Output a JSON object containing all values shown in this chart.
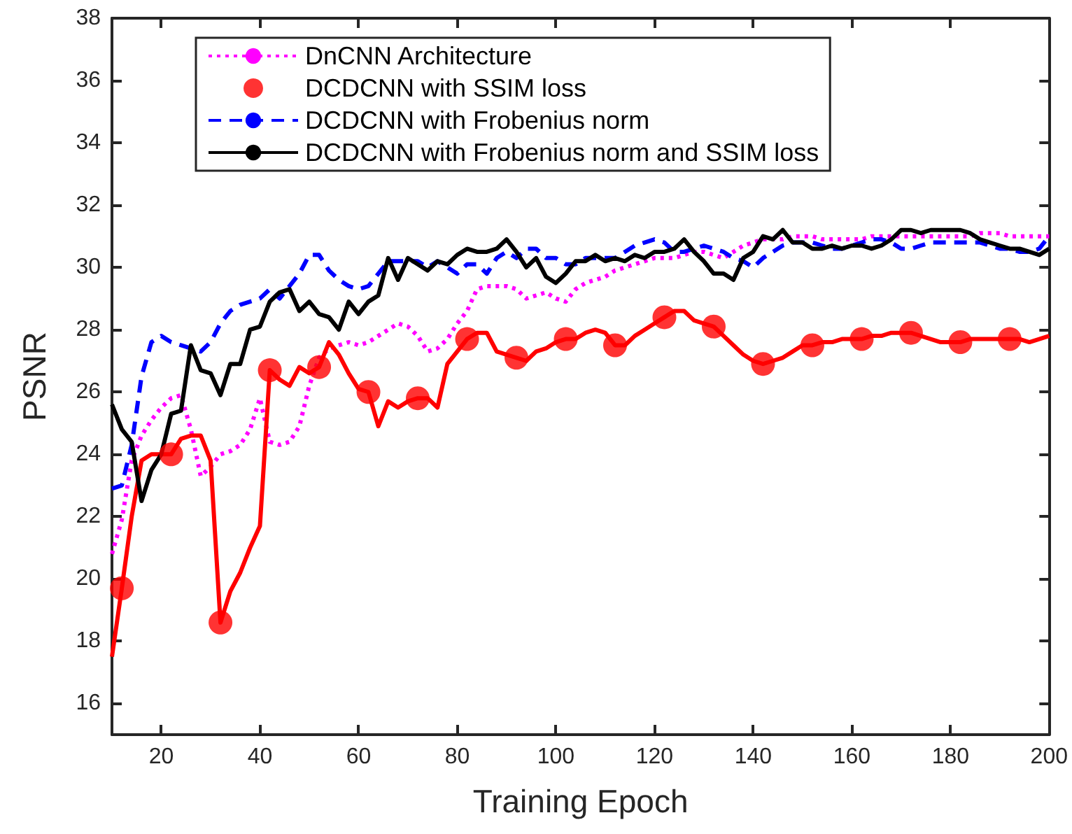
{
  "chart_data": {
    "type": "line",
    "xlabel": "Training Epoch",
    "ylabel": "PSNR",
    "xlim": [
      10,
      200
    ],
    "xticks": [
      20,
      40,
      60,
      80,
      100,
      120,
      140,
      160,
      180,
      200
    ],
    "ylim": [
      15,
      38
    ],
    "yticks": [
      16,
      18,
      20,
      22,
      24,
      26,
      28,
      30,
      32,
      34,
      36,
      38
    ],
    "grid": false,
    "legend": "top",
    "x": [
      10,
      12,
      14,
      16,
      18,
      20,
      22,
      24,
      26,
      28,
      30,
      32,
      34,
      36,
      38,
      40,
      42,
      44,
      46,
      48,
      50,
      52,
      54,
      56,
      58,
      60,
      62,
      64,
      66,
      68,
      70,
      72,
      74,
      76,
      78,
      80,
      82,
      84,
      86,
      88,
      90,
      92,
      94,
      96,
      98,
      100,
      102,
      104,
      106,
      108,
      110,
      112,
      114,
      116,
      118,
      120,
      122,
      124,
      126,
      128,
      130,
      132,
      134,
      136,
      138,
      140,
      142,
      144,
      146,
      148,
      150,
      152,
      154,
      156,
      158,
      160,
      162,
      164,
      166,
      168,
      170,
      172,
      174,
      176,
      178,
      180,
      182,
      184,
      186,
      188,
      190,
      192,
      194,
      196,
      198,
      200
    ],
    "series": [
      {
        "name": "DnCNN Architecture",
        "color": "#ff00ff",
        "marker": "none",
        "line_style": "dotted",
        "values": [
          20.8,
          21.9,
          23.8,
          24.6,
          25.1,
          25.5,
          25.8,
          25.9,
          24.8,
          23.3,
          23.6,
          24.0,
          24.1,
          24.3,
          24.8,
          25.8,
          24.4,
          24.3,
          24.4,
          24.9,
          26.2,
          27.1,
          27.4,
          27.5,
          27.6,
          27.5,
          27.6,
          27.8,
          28.0,
          28.2,
          28.1,
          27.8,
          27.3,
          27.4,
          27.7,
          28.2,
          28.6,
          29.3,
          29.4,
          29.4,
          29.4,
          29.3,
          29.0,
          29.1,
          29.2,
          29.0,
          28.9,
          29.3,
          29.5,
          29.6,
          29.7,
          29.9,
          30.0,
          30.1,
          30.2,
          30.3,
          30.3,
          30.3,
          30.4,
          30.5,
          30.5,
          30.4,
          30.3,
          30.5,
          30.7,
          30.8,
          30.9,
          30.9,
          30.9,
          31.0,
          31.0,
          31.0,
          30.9,
          30.9,
          30.9,
          30.9,
          30.9,
          31.0,
          31.0,
          31.0,
          31.0,
          31.0,
          31.0,
          31.0,
          31.0,
          31.0,
          31.0,
          31.0,
          31.1,
          31.1,
          31.1,
          31.0,
          31.0,
          31.0,
          31.0,
          31.0
        ]
      },
      {
        "color": "#ff0000",
        "marker": "none",
        "line_style": "solid",
        "values": [
          17.5,
          19.7,
          22.0,
          23.8,
          24.0,
          24.0,
          24.0,
          24.5,
          24.6,
          24.6,
          23.8,
          18.6,
          19.6,
          20.2,
          21.0,
          21.7,
          26.7,
          26.4,
          26.2,
          26.8,
          26.6,
          26.8,
          27.6,
          27.2,
          26.6,
          26.1,
          26.0,
          24.9,
          25.7,
          25.5,
          25.7,
          25.8,
          25.8,
          25.5,
          26.9,
          27.3,
          27.7,
          27.9,
          27.9,
          27.3,
          27.2,
          27.1,
          27.0,
          27.3,
          27.4,
          27.6,
          27.7,
          27.7,
          27.9,
          28.0,
          27.9,
          27.5,
          27.5,
          27.8,
          28.0,
          28.2,
          28.4,
          28.6,
          28.6,
          28.3,
          28.2,
          28.1,
          27.8,
          27.5,
          27.2,
          27.0,
          26.9,
          27.0,
          27.1,
          27.3,
          27.5,
          27.5,
          27.6,
          27.6,
          27.7,
          27.7,
          27.7,
          27.8,
          27.8,
          27.9,
          27.9,
          27.9,
          27.8,
          27.7,
          27.6,
          27.6,
          27.6,
          27.7,
          27.7,
          27.7,
          27.7,
          27.7,
          27.7,
          27.6,
          27.7,
          27.8
        ]
      },
      {
        "name": "DCDCNN with SSIM loss",
        "type": "scatter",
        "color": "#ff0000",
        "marker": "circle",
        "x": [
          12,
          22,
          32,
          42,
          52,
          62,
          72,
          82,
          92,
          102,
          112,
          122,
          132,
          142,
          152,
          162,
          172,
          182,
          192
        ],
        "values": [
          19.7,
          24.0,
          18.6,
          26.7,
          26.8,
          26.0,
          25.8,
          27.7,
          27.1,
          27.7,
          27.5,
          28.4,
          28.1,
          26.9,
          27.5,
          27.7,
          27.9,
          27.6,
          27.7
        ]
      },
      {
        "name": "DCDCNN with Frobenius norm",
        "color": "#0000ff",
        "marker": "none",
        "line_style": "dashed",
        "values": [
          22.9,
          23.0,
          24.3,
          26.5,
          27.6,
          27.8,
          27.6,
          27.5,
          27.4,
          27.3,
          27.6,
          28.2,
          28.6,
          28.8,
          28.9,
          29.0,
          29.3,
          29.0,
          29.4,
          29.8,
          30.4,
          30.4,
          29.9,
          29.6,
          29.4,
          29.3,
          29.4,
          29.8,
          30.2,
          30.2,
          30.2,
          30.2,
          30.0,
          30.2,
          30.0,
          29.8,
          30.1,
          30.1,
          29.8,
          30.3,
          30.5,
          30.3,
          30.6,
          30.6,
          30.3,
          30.3,
          30.1,
          30.1,
          30.3,
          30.3,
          30.3,
          30.3,
          30.5,
          30.7,
          30.8,
          30.9,
          30.8,
          30.5,
          30.5,
          30.6,
          30.7,
          30.6,
          30.5,
          30.3,
          30.2,
          30.0,
          30.3,
          30.5,
          30.7,
          30.8,
          30.8,
          30.8,
          30.7,
          30.6,
          30.6,
          30.7,
          30.8,
          30.9,
          30.9,
          30.8,
          30.6,
          30.6,
          30.7,
          30.8,
          30.8,
          30.8,
          30.8,
          30.8,
          30.8,
          30.7,
          30.6,
          30.6,
          30.5,
          30.5,
          30.6,
          31.0
        ]
      },
      {
        "name": "DCDCNN with Frobenius norm and SSIM loss",
        "color": "#000000",
        "marker": "none",
        "line_style": "solid",
        "values": [
          25.6,
          24.8,
          24.4,
          22.5,
          23.5,
          24.0,
          25.3,
          25.4,
          27.5,
          26.7,
          26.6,
          25.9,
          26.9,
          26.9,
          28.0,
          28.1,
          28.9,
          29.2,
          29.3,
          28.6,
          28.9,
          28.5,
          28.4,
          28.0,
          28.9,
          28.5,
          28.9,
          29.1,
          30.3,
          29.6,
          30.3,
          30.1,
          29.9,
          30.2,
          30.1,
          30.4,
          30.6,
          30.5,
          30.5,
          30.6,
          30.9,
          30.5,
          30.0,
          30.3,
          29.7,
          29.5,
          29.8,
          30.2,
          30.2,
          30.4,
          30.2,
          30.3,
          30.2,
          30.4,
          30.3,
          30.5,
          30.5,
          30.6,
          30.9,
          30.5,
          30.2,
          29.8,
          29.8,
          29.6,
          30.3,
          30.5,
          31.0,
          30.9,
          31.2,
          30.8,
          30.8,
          30.6,
          30.6,
          30.7,
          30.6,
          30.7,
          30.7,
          30.6,
          30.7,
          30.9,
          31.2,
          31.2,
          31.1,
          31.2,
          31.2,
          31.2,
          31.2,
          31.1,
          30.9,
          30.8,
          30.7,
          30.6,
          30.6,
          30.5,
          30.4,
          30.6
        ]
      }
    ]
  }
}
